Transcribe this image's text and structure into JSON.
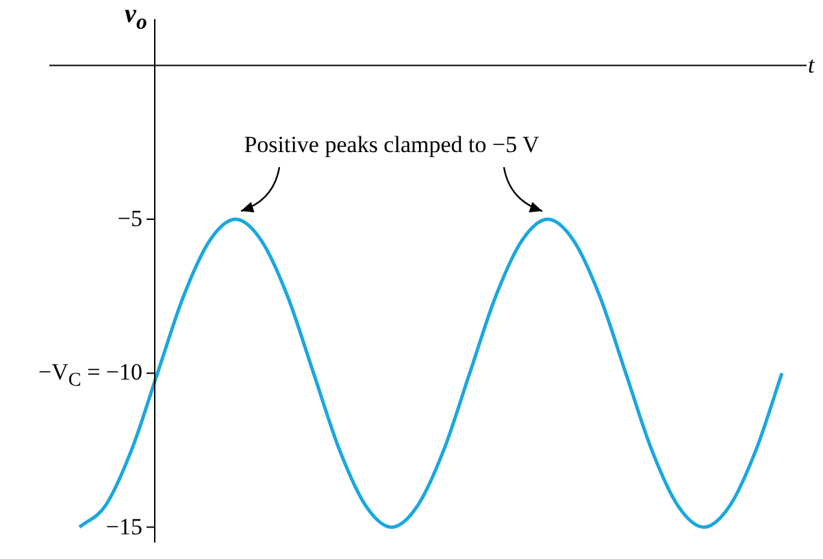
{
  "chart_data": {
    "type": "line",
    "xlabel": "t",
    "ylabel": "v$_{o}$",
    "categories": [
      null,
      null,
      null,
      null,
      null,
      null,
      null,
      null,
      null,
      null,
      null,
      null,
      null,
      null,
      null,
      null,
      null,
      null,
      null,
      null,
      null,
      null,
      null,
      null,
      null,
      null,
      null,
      null
    ],
    "series": [
      {
        "color": "#1aa7e0",
        "values": [
          -15,
          -14.3,
          -12.5,
          -10,
          -7.5,
          -5.7,
          -5,
          -5.7,
          -7.5,
          -10,
          -12.5,
          -14.3,
          -15,
          -14.3,
          -12.5,
          -10,
          -7.5,
          -5.7,
          -5,
          -5.7,
          -7.5,
          -10,
          -12.5,
          -14.3,
          -15,
          -14.3,
          -12.5,
          -10
        ]
      }
    ],
    "ylim": [
      -15.5,
      1.5
    ],
    "yticks": [
      -5,
      {
        "value": -10,
        "label": "−V$_{C}$ = −10"
      },
      -15
    ],
    "tick_labels": "y",
    "legend": false,
    "marker": "none",
    "line_style": "solid",
    "annotations": [
      "Positive peaks clamped to −5 V"
    ]
  }
}
